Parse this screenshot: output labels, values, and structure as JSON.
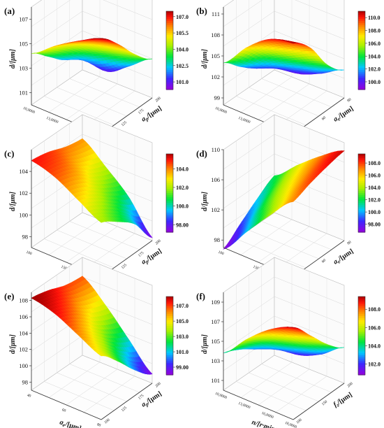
{
  "chart_data": [
    {
      "type": "surface3d",
      "panel_label": "(a)",
      "zlabel": "d/[μm]",
      "xlabel": "n/[r·min⁻¹]",
      "ylabel": "a_p/[μm]",
      "zlim": [
        100,
        108
      ],
      "zticks": [
        "101",
        "103",
        "105",
        "107"
      ],
      "xticks": [
        "10,0000",
        "13,0000",
        "16,0000",
        "18,0000"
      ],
      "yticks": [
        "100",
        "125",
        "175",
        "200"
      ],
      "colorbar": {
        "ticks": [
          "107.0",
          "105.5",
          "104.0",
          "102.5",
          "101.0"
        ],
        "min": 100.3,
        "max": 107.5
      },
      "surface_z": [
        [
          104.2,
          105.6,
          106.8,
          107.8
        ],
        [
          103.0,
          104.6,
          105.7,
          106.4
        ],
        [
          101.8,
          102.9,
          103.9,
          104.6
        ],
        [
          101.6,
          100.7,
          101.9,
          103.3
        ]
      ]
    },
    {
      "type": "surface3d",
      "panel_label": "(b)",
      "zlabel": "d/[μm]",
      "xlabel": "n/[r·min⁻¹]",
      "ylabel": "a_e/[μm]",
      "zlim": [
        98,
        112
      ],
      "zticks": [
        "99",
        "102",
        "105",
        "108",
        "111"
      ],
      "xticks": [
        "10,0000",
        "13,0000",
        "16,0000",
        "18,0000"
      ],
      "yticks": [
        "40",
        "60",
        "80"
      ],
      "colorbar": {
        "ticks": [
          "110.0",
          "108.0",
          "106.0",
          "104.0",
          "102.0",
          "100.0"
        ],
        "min": 98.8,
        "max": 111.0
      },
      "surface_z": [
        [
          104.0,
          107.6,
          110.2,
          111.0
        ],
        [
          101.8,
          104.9,
          107.0,
          108.7
        ],
        [
          100.0,
          101.5,
          103.2,
          104.6
        ],
        [
          99.8,
          99.0,
          100.3,
          102.2
        ]
      ]
    },
    {
      "type": "surface3d",
      "panel_label": "(c)",
      "zlabel": "d/[μm]",
      "xlabel": "f_z/[μm]",
      "ylabel": "a_p/[μm]",
      "zlim": [
        97,
        106
      ],
      "zticks": [
        "98",
        "100",
        "102",
        "104"
      ],
      "xticks": [
        "100",
        "150",
        "200"
      ],
      "yticks": [
        "100",
        "125",
        "175",
        "200"
      ],
      "colorbar": {
        "ticks": [
          "104.0",
          "102.0",
          "100.0",
          "98.00"
        ],
        "min": 97.2,
        "max": 105.6
      },
      "surface_z": [
        [
          105.0,
          104.4,
          103.2,
          102.0
        ],
        [
          104.7,
          103.9,
          102.4,
          101.0
        ],
        [
          104.1,
          102.8,
          101.2,
          99.7
        ],
        [
          103.8,
          102.1,
          100.2,
          97.4
        ]
      ]
    },
    {
      "type": "surface3d",
      "panel_label": "(d)",
      "zlabel": "d/[μm]",
      "xlabel": "f_z/[μm]",
      "ylabel": "a_e/[μm]",
      "zlim": [
        97,
        110
      ],
      "zticks": [
        "98",
        "102",
        "106",
        "110"
      ],
      "xticks": [
        "100",
        "150",
        "200"
      ],
      "yticks": [
        "40",
        "60",
        "80"
      ],
      "colorbar": {
        "ticks": [
          "108.0",
          "106.0",
          "104.0",
          "102.0",
          "100.0",
          "98.00"
        ],
        "min": 96.7,
        "max": 109.5
      },
      "surface_z": [
        [
          96.8,
          100.4,
          103.9,
          107.0
        ],
        [
          98.6,
          102.2,
          105.3,
          107.9
        ],
        [
          100.4,
          103.6,
          106.4,
          108.6
        ],
        [
          101.9,
          104.6,
          107.1,
          109.1
        ]
      ]
    },
    {
      "type": "surface3d",
      "panel_label": "(e)",
      "zlabel": "d/[μm]",
      "xlabel": "a_e/[μm]",
      "ylabel": "a_p/[μm]",
      "zlim": [
        97,
        109
      ],
      "zticks": [
        "98",
        "100",
        "102",
        "104",
        "106",
        "108"
      ],
      "xticks": [
        "40",
        "60",
        "80"
      ],
      "yticks": [
        "100",
        "125",
        "175",
        "200"
      ],
      "colorbar": {
        "ticks": [
          "107.0",
          "105.0",
          "103.0",
          "101.0",
          "99.00"
        ],
        "min": 98.0,
        "max": 108.2
      },
      "surface_z": [
        [
          108.3,
          107.6,
          106.2,
          104.8
        ],
        [
          107.8,
          106.6,
          104.6,
          102.7
        ],
        [
          107.0,
          105.1,
          102.6,
          100.2
        ],
        [
          106.7,
          104.3,
          101.3,
          98.3
        ]
      ]
    },
    {
      "type": "surface3d",
      "panel_label": "(f)",
      "zlabel": "d/[μm]",
      "xlabel": "n/[r·min⁻¹]",
      "ylabel": "f_z/[μm]",
      "zlim": [
        100,
        110
      ],
      "zticks": [
        "101",
        "103",
        "105",
        "107",
        "109"
      ],
      "xticks": [
        "10,0000",
        "13,0000",
        "16,0000",
        "18,0000"
      ],
      "yticks": [
        "100",
        "150",
        "200"
      ],
      "colorbar": {
        "ticks": [
          "108.0",
          "106.0",
          "104.0",
          "102.0"
        ],
        "min": 100.8,
        "max": 109.4
      },
      "surface_z": [
        [
          103.8,
          106.2,
          108.2,
          109.4
        ],
        [
          103.0,
          104.8,
          106.2,
          107.4
        ],
        [
          102.0,
          102.8,
          104.0,
          105.3
        ],
        [
          102.3,
          101.2,
          102.1,
          103.8
        ]
      ]
    }
  ]
}
